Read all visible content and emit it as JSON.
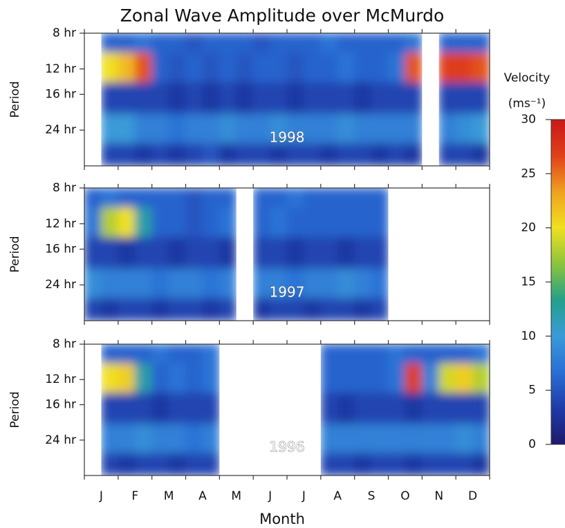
{
  "chart_data": {
    "type": "heatmap",
    "title": "Zonal Wave Amplitude over McMurdo",
    "x_label": "Month",
    "y_label": "Period",
    "categories": [
      "J",
      "F",
      "M",
      "A",
      "M",
      "J",
      "J",
      "A",
      "S",
      "O",
      "N",
      "D"
    ],
    "ylim": [
      8,
      36
    ],
    "log_y": true,
    "yticks": [
      {
        "value": 8,
        "label": "8 hr"
      },
      {
        "value": 12,
        "label": "12 hr"
      },
      {
        "value": 16,
        "label": "16 hr"
      },
      {
        "value": 24,
        "label": "24 hr"
      }
    ],
    "period_bins": [
      8,
      10,
      14,
      20,
      28,
      36
    ],
    "colorbar": {
      "title": "Velocity",
      "unit": "(ms⁻¹)",
      "zlim": [
        0,
        30
      ],
      "ticks": [
        0,
        5,
        10,
        15,
        20,
        25,
        30
      ],
      "colors": [
        "#1e1a6e",
        "#1f3aa8",
        "#2a6fd6",
        "#3a9ad8",
        "#23a08a",
        "#8cc43c",
        "#f0e020",
        "#f0a020",
        "#e0401a",
        "#c81818"
      ]
    },
    "panels": [
      {
        "label": "1998",
        "values": [
          [
            null,
            6,
            6,
            7,
            6,
            6,
            5,
            6,
            6,
            6,
            5,
            6,
            6,
            6,
            7,
            6,
            6,
            6,
            6,
            7,
            null,
            6,
            6,
            6
          ],
          [
            null,
            20,
            22,
            26,
            6,
            5,
            6,
            5,
            6,
            5,
            6,
            6,
            5,
            6,
            6,
            7,
            6,
            6,
            7,
            26,
            null,
            27,
            27,
            26
          ],
          [
            null,
            4,
            4,
            4,
            4,
            3,
            4,
            3,
            4,
            3,
            4,
            4,
            3,
            4,
            4,
            4,
            3,
            4,
            4,
            4,
            null,
            4,
            4,
            4
          ],
          [
            null,
            10,
            10,
            8,
            8,
            7,
            8,
            8,
            9,
            8,
            8,
            9,
            8,
            8,
            8,
            9,
            8,
            8,
            8,
            8,
            null,
            8,
            9,
            10
          ],
          [
            null,
            4,
            4,
            3,
            4,
            3,
            4,
            5,
            3,
            4,
            4,
            3,
            4,
            4,
            3,
            4,
            4,
            3,
            4,
            3,
            null,
            4,
            4,
            3
          ]
        ]
      },
      {
        "label": "1997",
        "values": [
          [
            6,
            7,
            6,
            6,
            6,
            6,
            5,
            6,
            6,
            null,
            6,
            6,
            7,
            6,
            6,
            6,
            6,
            6,
            null,
            null,
            null,
            null,
            null,
            null
          ],
          [
            7,
            18,
            20,
            12,
            6,
            6,
            5,
            6,
            7,
            null,
            6,
            7,
            6,
            6,
            6,
            6,
            6,
            6,
            null,
            null,
            null,
            null,
            null,
            null
          ],
          [
            4,
            4,
            3,
            4,
            4,
            3,
            4,
            4,
            3,
            null,
            4,
            4,
            3,
            4,
            4,
            3,
            4,
            4,
            null,
            null,
            null,
            null,
            null,
            null
          ],
          [
            9,
            8,
            8,
            8,
            7,
            8,
            8,
            7,
            8,
            null,
            8,
            8,
            7,
            8,
            8,
            9,
            8,
            7,
            null,
            null,
            null,
            null,
            null,
            null
          ],
          [
            4,
            3,
            4,
            4,
            3,
            4,
            4,
            3,
            4,
            null,
            3,
            4,
            4,
            3,
            4,
            4,
            3,
            4,
            null,
            null,
            null,
            null,
            null,
            null
          ]
        ]
      },
      {
        "label": "1996",
        "values": [
          [
            null,
            6,
            6,
            6,
            7,
            6,
            6,
            7,
            null,
            null,
            null,
            null,
            null,
            null,
            6,
            6,
            6,
            6,
            7,
            6,
            6,
            6,
            6,
            7
          ],
          [
            null,
            20,
            21,
            12,
            6,
            7,
            6,
            7,
            null,
            null,
            null,
            null,
            null,
            null,
            6,
            6,
            6,
            6,
            7,
            27,
            8,
            19,
            21,
            18
          ],
          [
            null,
            4,
            4,
            4,
            3,
            4,
            4,
            4,
            null,
            null,
            null,
            null,
            null,
            null,
            4,
            3,
            4,
            4,
            4,
            3,
            4,
            4,
            4,
            4
          ],
          [
            null,
            8,
            8,
            9,
            8,
            8,
            7,
            8,
            null,
            null,
            null,
            null,
            null,
            null,
            8,
            8,
            8,
            8,
            8,
            8,
            8,
            8,
            9,
            8
          ],
          [
            null,
            4,
            3,
            4,
            4,
            3,
            4,
            4,
            null,
            null,
            null,
            null,
            null,
            null,
            4,
            4,
            3,
            4,
            4,
            3,
            4,
            4,
            4,
            3
          ]
        ]
      }
    ]
  }
}
